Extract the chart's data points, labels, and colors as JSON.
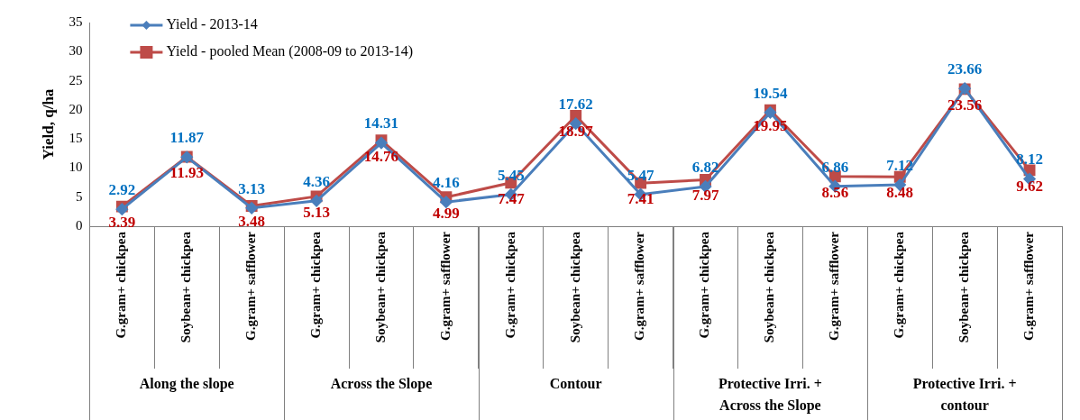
{
  "chart_data": {
    "type": "line",
    "ylabel": "Yield, q/ha",
    "categories": [
      "G.gram+ chickpea",
      "Soybean+ chickpea",
      "G.gram+ safflower",
      "G.gram+ chickpea",
      "Soybean+ chickpea",
      "G.gram+ safflower",
      "G.gram+ chickpea",
      "Soybean+ chickpea",
      "G.gram+ safflower",
      "G.gram+ chickpea",
      "Soybean+ chickpea",
      "G.gram+ safflower",
      "G.gram+ chickpea",
      "Soybean+ chickpea",
      "G.gram+ safflower"
    ],
    "annotations": [
      "Along the slope",
      "Across the Slope",
      "Contour",
      "Protective Irri. +\nAcross the Slope",
      "Protective Irri. +\ncontour"
    ],
    "series": [
      {
        "name": "Yield - 2013-14",
        "color": "#4a7ebb",
        "marker": "diamond",
        "values": [
          2.92,
          11.87,
          3.13,
          4.36,
          14.31,
          4.16,
          5.45,
          17.62,
          5.47,
          6.82,
          19.54,
          6.86,
          7.12,
          23.66,
          8.12
        ]
      },
      {
        "name": "Yield - pooled Mean (2008-09 to 2013-14)",
        "color": "#be4b48",
        "marker": "square",
        "values": [
          3.39,
          11.93,
          3.48,
          5.13,
          14.76,
          4.99,
          7.47,
          18.97,
          7.41,
          7.97,
          19.95,
          8.56,
          8.48,
          23.56,
          9.62
        ]
      }
    ],
    "ylim": [
      0,
      35
    ],
    "yticks": [
      0,
      5,
      10,
      15,
      20,
      25,
      30,
      35
    ],
    "grid": false,
    "legend": "top left",
    "data_labels": true
  }
}
